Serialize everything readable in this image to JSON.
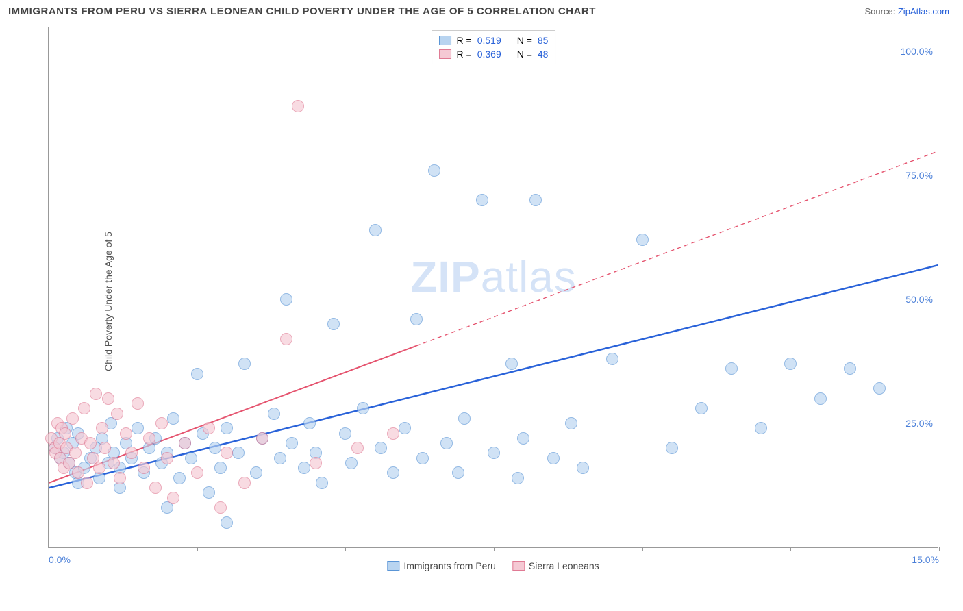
{
  "header": {
    "title": "IMMIGRANTS FROM PERU VS SIERRA LEONEAN CHILD POVERTY UNDER THE AGE OF 5 CORRELATION CHART",
    "source_prefix": "Source: ",
    "source_link": "ZipAtlas.com"
  },
  "chart": {
    "type": "scatter",
    "ylabel": "Child Poverty Under the Age of 5",
    "watermark_a": "ZIP",
    "watermark_b": "atlas",
    "xlim": [
      0,
      15
    ],
    "ylim": [
      0,
      105
    ],
    "xtick_positions": [
      0,
      2.5,
      5,
      7.5,
      10,
      12.5,
      15
    ],
    "xtick_labels": {
      "0": "0.0%",
      "15": "15.0%"
    },
    "ytick_positions": [
      25,
      50,
      75,
      100
    ],
    "ytick_labels": {
      "25": "25.0%",
      "50": "50.0%",
      "75": "75.0%",
      "100": "100.0%"
    },
    "background_color": "#ffffff",
    "grid_color": "#dddddd",
    "axis_color": "#999999",
    "tick_label_color": "#4a7fd8",
    "marker_radius": 9,
    "marker_stroke_width": 1,
    "series": [
      {
        "name": "Immigrants from Peru",
        "fill": "#b8d4f0",
        "stroke": "#5a95d6",
        "fill_opacity": 0.65,
        "r": 0.519,
        "n": 85,
        "trend": {
          "x1": 0,
          "y1": 12,
          "x2": 15,
          "y2": 57,
          "color": "#2962d9",
          "width": 2.5,
          "solid_until_x": 15
        },
        "points": [
          [
            0.1,
            20
          ],
          [
            0.15,
            22
          ],
          [
            0.2,
            18
          ],
          [
            0.25,
            19
          ],
          [
            0.3,
            24
          ],
          [
            0.35,
            17
          ],
          [
            0.4,
            21
          ],
          [
            0.45,
            15
          ],
          [
            0.5,
            23
          ],
          [
            0.6,
            16
          ],
          [
            0.7,
            18
          ],
          [
            0.8,
            20
          ],
          [
            0.85,
            14
          ],
          [
            0.9,
            22
          ],
          [
            1.0,
            17
          ],
          [
            1.05,
            25
          ],
          [
            1.1,
            19
          ],
          [
            1.2,
            16
          ],
          [
            1.3,
            21
          ],
          [
            1.4,
            18
          ],
          [
            1.5,
            24
          ],
          [
            1.6,
            15
          ],
          [
            1.7,
            20
          ],
          [
            1.8,
            22
          ],
          [
            1.9,
            17
          ],
          [
            2.0,
            19
          ],
          [
            2.1,
            26
          ],
          [
            2.2,
            14
          ],
          [
            2.3,
            21
          ],
          [
            2.4,
            18
          ],
          [
            2.5,
            35
          ],
          [
            2.6,
            23
          ],
          [
            2.7,
            11
          ],
          [
            2.8,
            20
          ],
          [
            2.9,
            16
          ],
          [
            3.0,
            24
          ],
          [
            3.2,
            19
          ],
          [
            3.3,
            37
          ],
          [
            3.5,
            15
          ],
          [
            3.6,
            22
          ],
          [
            3.8,
            27
          ],
          [
            3.9,
            18
          ],
          [
            4.0,
            50
          ],
          [
            4.1,
            21
          ],
          [
            4.3,
            16
          ],
          [
            4.4,
            25
          ],
          [
            4.5,
            19
          ],
          [
            4.6,
            13
          ],
          [
            4.8,
            45
          ],
          [
            5.0,
            23
          ],
          [
            5.1,
            17
          ],
          [
            5.3,
            28
          ],
          [
            5.5,
            64
          ],
          [
            5.6,
            20
          ],
          [
            5.8,
            15
          ],
          [
            6.0,
            24
          ],
          [
            6.2,
            46
          ],
          [
            6.3,
            18
          ],
          [
            6.5,
            76
          ],
          [
            6.7,
            21
          ],
          [
            6.9,
            15
          ],
          [
            7.0,
            26
          ],
          [
            7.3,
            70
          ],
          [
            7.5,
            19
          ],
          [
            7.8,
            37
          ],
          [
            7.9,
            14
          ],
          [
            8.0,
            22
          ],
          [
            8.2,
            70
          ],
          [
            8.5,
            18
          ],
          [
            8.8,
            25
          ],
          [
            9.0,
            16
          ],
          [
            9.5,
            38
          ],
          [
            10.0,
            62
          ],
          [
            10.5,
            20
          ],
          [
            11.0,
            28
          ],
          [
            11.5,
            36
          ],
          [
            12.0,
            24
          ],
          [
            12.5,
            37
          ],
          [
            13.0,
            30
          ],
          [
            13.5,
            36
          ],
          [
            14.0,
            32
          ],
          [
            0.5,
            13
          ],
          [
            1.2,
            12
          ],
          [
            2.0,
            8
          ],
          [
            3.0,
            5
          ]
        ]
      },
      {
        "name": "Sierra Leoneans",
        "fill": "#f5c9d4",
        "stroke": "#e07a94",
        "fill_opacity": 0.65,
        "r": 0.369,
        "n": 48,
        "trend": {
          "x1": 0,
          "y1": 13,
          "x2": 15,
          "y2": 80,
          "color": "#e5546f",
          "width": 2,
          "solid_until_x": 6.2
        },
        "points": [
          [
            0.05,
            22
          ],
          [
            0.1,
            20
          ],
          [
            0.12,
            19
          ],
          [
            0.15,
            25
          ],
          [
            0.18,
            21
          ],
          [
            0.2,
            18
          ],
          [
            0.22,
            24
          ],
          [
            0.25,
            16
          ],
          [
            0.28,
            23
          ],
          [
            0.3,
            20
          ],
          [
            0.35,
            17
          ],
          [
            0.4,
            26
          ],
          [
            0.45,
            19
          ],
          [
            0.5,
            15
          ],
          [
            0.55,
            22
          ],
          [
            0.6,
            28
          ],
          [
            0.65,
            13
          ],
          [
            0.7,
            21
          ],
          [
            0.75,
            18
          ],
          [
            0.8,
            31
          ],
          [
            0.85,
            16
          ],
          [
            0.9,
            24
          ],
          [
            0.95,
            20
          ],
          [
            1.0,
            30
          ],
          [
            1.1,
            17
          ],
          [
            1.15,
            27
          ],
          [
            1.2,
            14
          ],
          [
            1.3,
            23
          ],
          [
            1.4,
            19
          ],
          [
            1.5,
            29
          ],
          [
            1.6,
            16
          ],
          [
            1.7,
            22
          ],
          [
            1.8,
            12
          ],
          [
            1.9,
            25
          ],
          [
            2.0,
            18
          ],
          [
            2.1,
            10
          ],
          [
            2.3,
            21
          ],
          [
            2.5,
            15
          ],
          [
            2.7,
            24
          ],
          [
            2.9,
            8
          ],
          [
            3.0,
            19
          ],
          [
            3.3,
            13
          ],
          [
            3.6,
            22
          ],
          [
            4.0,
            42
          ],
          [
            4.2,
            89
          ],
          [
            4.5,
            17
          ],
          [
            5.2,
            20
          ],
          [
            5.8,
            23
          ]
        ]
      }
    ],
    "legend_top_labels": {
      "r_label": "R",
      "n_label": "N",
      "eq": "="
    },
    "legend_bottom": [
      {
        "label": "Immigrants from Peru",
        "fill": "#b8d4f0",
        "stroke": "#5a95d6"
      },
      {
        "label": "Sierra Leoneans",
        "fill": "#f5c9d4",
        "stroke": "#e07a94"
      }
    ]
  }
}
